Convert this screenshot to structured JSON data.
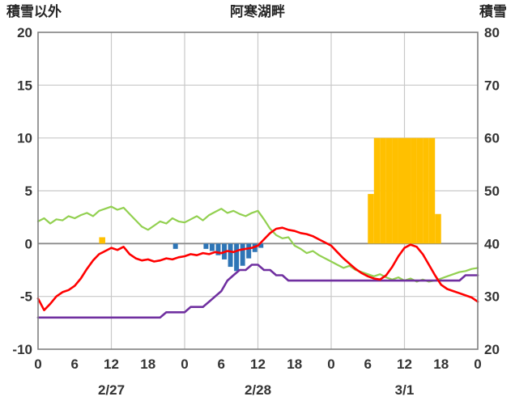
{
  "header": {
    "left_axis_title": "積雪以外",
    "title": "阿寒湖畔",
    "right_axis_title": "積雪"
  },
  "chart_data": {
    "type": "line+bar combo (hourly weather chart)",
    "title": "阿寒湖畔",
    "x_unit": "hour",
    "x_range_hours": [
      0,
      72
    ],
    "left_axis": {
      "title": "積雪以外",
      "min": -10,
      "max": 20,
      "tick_step": 5,
      "ticks": [
        {
          "value": 20,
          "label": "20"
        },
        {
          "value": 15,
          "label": "15"
        },
        {
          "value": 10,
          "label": "10"
        },
        {
          "value": 5,
          "label": "5"
        },
        {
          "value": 0,
          "label": "0"
        },
        {
          "value": -5,
          "label": "-5"
        },
        {
          "value": -10,
          "label": "-10"
        }
      ]
    },
    "right_axis": {
      "title": "積雪",
      "min": 20,
      "max": 80,
      "tick_step": 10,
      "ticks": [
        {
          "value": 80,
          "label": "80"
        },
        {
          "value": 70,
          "label": "70"
        },
        {
          "value": 60,
          "label": "60"
        },
        {
          "value": 50,
          "label": "50"
        },
        {
          "value": 40,
          "label": "40"
        },
        {
          "value": 30,
          "label": "30"
        },
        {
          "value": 20,
          "label": "20"
        }
      ]
    },
    "x_ticks": [
      {
        "hour": 0,
        "label": "0"
      },
      {
        "hour": 6,
        "label": "6"
      },
      {
        "hour": 12,
        "label": "12"
      },
      {
        "hour": 18,
        "label": "18"
      },
      {
        "hour": 24,
        "label": "0"
      },
      {
        "hour": 30,
        "label": "6"
      },
      {
        "hour": 36,
        "label": "12"
      },
      {
        "hour": 42,
        "label": "18"
      },
      {
        "hour": 48,
        "label": "0"
      },
      {
        "hour": 54,
        "label": "6"
      },
      {
        "hour": 60,
        "label": "12"
      },
      {
        "hour": 66,
        "label": "18"
      },
      {
        "hour": 72,
        "label": "0"
      }
    ],
    "days": [
      {
        "label": "2/27",
        "center_hour": 12
      },
      {
        "label": "2/28",
        "center_hour": 36
      },
      {
        "label": "3/1",
        "center_hour": 60
      }
    ],
    "grid": {
      "vertical_hours": [
        12,
        24,
        36,
        48,
        60
      ],
      "horizontal_values": [
        15,
        10,
        5,
        0,
        -5
      ]
    },
    "series": {
      "red_line": {
        "axis": "left",
        "color": "#ff0000",
        "hourly": [
          -5.2,
          -6.3,
          -5.7,
          -5.0,
          -4.6,
          -4.4,
          -4.0,
          -3.3,
          -2.4,
          -1.6,
          -1.0,
          -0.7,
          -0.4,
          -0.6,
          -0.3,
          -1.0,
          -1.4,
          -1.6,
          -1.5,
          -1.7,
          -1.6,
          -1.4,
          -1.5,
          -1.3,
          -1.2,
          -1.0,
          -1.1,
          -0.9,
          -1.0,
          -0.8,
          -0.9,
          -0.7,
          -0.8,
          -0.6,
          -0.5,
          -0.4,
          -0.2,
          0.4,
          1.0,
          1.4,
          1.5,
          1.3,
          1.2,
          1.0,
          0.9,
          0.7,
          0.4,
          0.1,
          -0.2,
          -0.8,
          -1.4,
          -1.9,
          -2.4,
          -2.8,
          -3.1,
          -3.3,
          -3.4,
          -3.0,
          -2.2,
          -1.2,
          -0.4,
          -0.1,
          -0.3,
          -1.0,
          -2.0,
          -3.0,
          -3.9,
          -4.3,
          -4.5,
          -4.7,
          -4.9,
          -5.1,
          -5.5
        ]
      },
      "green_line": {
        "axis": "left",
        "color": "#92d050",
        "hourly": [
          2.1,
          2.4,
          1.9,
          2.3,
          2.2,
          2.6,
          2.4,
          2.7,
          2.9,
          2.6,
          3.1,
          3.3,
          3.5,
          3.2,
          3.4,
          2.8,
          2.2,
          1.6,
          1.3,
          1.7,
          2.1,
          1.9,
          2.4,
          2.1,
          2.0,
          2.3,
          2.6,
          2.2,
          2.7,
          3.0,
          3.3,
          2.9,
          3.1,
          2.8,
          2.6,
          2.9,
          3.1,
          2.3,
          1.4,
          0.8,
          0.5,
          0.6,
          -0.2,
          -0.5,
          -0.9,
          -0.7,
          -1.1,
          -1.4,
          -1.7,
          -2.0,
          -2.3,
          -2.1,
          -2.5,
          -2.7,
          -2.9,
          -3.1,
          -2.9,
          -3.2,
          -3.4,
          -3.2,
          -3.5,
          -3.3,
          -3.6,
          -3.4,
          -3.6,
          -3.5,
          -3.3,
          -3.1,
          -2.9,
          -2.7,
          -2.6,
          -2.4,
          -2.3
        ]
      },
      "purple_line": {
        "axis": "right",
        "color": "#7030a0",
        "hourly_cm": [
          26,
          26,
          26,
          26,
          26,
          26,
          26,
          26,
          26,
          26,
          26,
          26,
          26,
          26,
          26,
          26,
          26,
          26,
          26,
          26,
          26,
          27,
          27,
          27,
          27,
          28,
          28,
          28,
          29,
          30,
          31,
          33,
          34,
          35,
          35,
          36,
          36,
          35,
          35,
          34,
          34,
          33,
          33,
          33,
          33,
          33,
          33,
          33,
          33,
          33,
          33,
          33,
          33,
          33,
          33,
          33,
          33,
          33,
          33,
          33,
          33,
          33,
          33,
          33,
          33,
          33,
          33,
          33,
          33,
          33,
          34,
          34,
          34
        ]
      },
      "yellow_bars": {
        "axis": "left",
        "color": "#ffc000",
        "direction": "up",
        "bars": [
          {
            "hour": 10,
            "value": 0.6
          },
          {
            "hour": 54,
            "value": 4.7
          },
          {
            "hour": 55,
            "value": 10
          },
          {
            "hour": 56,
            "value": 10
          },
          {
            "hour": 57,
            "value": 10
          },
          {
            "hour": 58,
            "value": 10
          },
          {
            "hour": 59,
            "value": 10
          },
          {
            "hour": 60,
            "value": 10
          },
          {
            "hour": 61,
            "value": 10
          },
          {
            "hour": 62,
            "value": 10
          },
          {
            "hour": 63,
            "value": 10
          },
          {
            "hour": 64,
            "value": 10
          },
          {
            "hour": 65,
            "value": 2.8
          }
        ]
      },
      "blue_bars": {
        "axis": "left",
        "color": "#2e75b6",
        "direction": "down",
        "bars": [
          {
            "hour": 22,
            "value": 0.5
          },
          {
            "hour": 27,
            "value": 0.5
          },
          {
            "hour": 28,
            "value": 0.7
          },
          {
            "hour": 29,
            "value": 1.1
          },
          {
            "hour": 30,
            "value": 1.5
          },
          {
            "hour": 31,
            "value": 2.2
          },
          {
            "hour": 32,
            "value": 2.6
          },
          {
            "hour": 33,
            "value": 2.1
          },
          {
            "hour": 34,
            "value": 1.4
          },
          {
            "hour": 35,
            "value": 0.8
          },
          {
            "hour": 36,
            "value": 0.4
          }
        ]
      }
    }
  }
}
